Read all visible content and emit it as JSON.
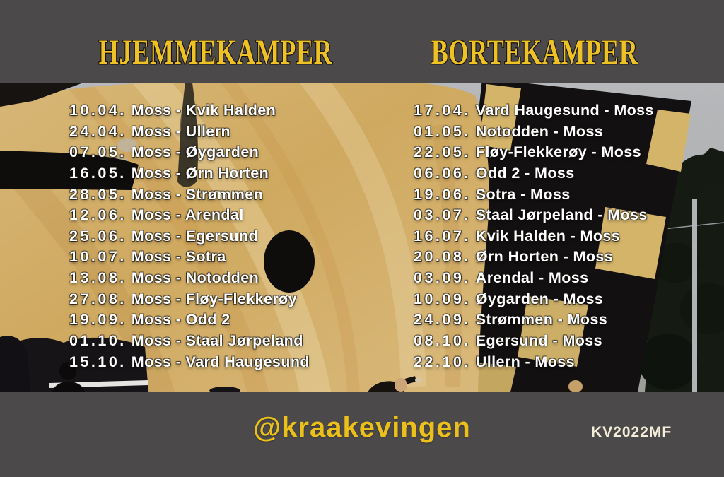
{
  "titles": {
    "home": "HJEMMEKAMPER",
    "away": "BORTEKAMPER"
  },
  "home_matches": [
    {
      "date": "10.04.",
      "fixture": "Moss - Kvik Halden"
    },
    {
      "date": "24.04.",
      "fixture": "Moss - Ullern"
    },
    {
      "date": "07.05.",
      "fixture": "Moss - Øygarden"
    },
    {
      "date": "16.05.",
      "fixture": "Moss - Ørn Horten"
    },
    {
      "date": "28.05.",
      "fixture": "Moss - Strømmen"
    },
    {
      "date": "12.06.",
      "fixture": "Moss - Arendal"
    },
    {
      "date": "25.06.",
      "fixture": "Moss - Egersund"
    },
    {
      "date": "10.07.",
      "fixture": "Moss - Sotra"
    },
    {
      "date": "13.08.",
      "fixture": "Moss - Notodden"
    },
    {
      "date": "27.08.",
      "fixture": "Moss - Fløy-Flekkerøy"
    },
    {
      "date": "19.09.",
      "fixture": "Moss - Odd 2"
    },
    {
      "date": "01.10.",
      "fixture": "Moss - Staal Jørpeland"
    },
    {
      "date": "15.10.",
      "fixture": "Moss - Vard Haugesund"
    }
  ],
  "away_matches": [
    {
      "date": "17.04.",
      "fixture": "Vard Haugesund - Moss"
    },
    {
      "date": "01.05.",
      "fixture": "Notodden - Moss"
    },
    {
      "date": "22.05.",
      "fixture": "Fløy-Flekkerøy - Moss"
    },
    {
      "date": "06.06.",
      "fixture": "Odd 2 - Moss"
    },
    {
      "date": "19.06.",
      "fixture": "Sotra - Moss"
    },
    {
      "date": "03.07.",
      "fixture": "Staal Jørpeland - Moss"
    },
    {
      "date": "16.07.",
      "fixture": "Kvik Halden - Moss"
    },
    {
      "date": "20.08.",
      "fixture": "Ørn Horten - Moss"
    },
    {
      "date": "03.09.",
      "fixture": "Arendal - Moss"
    },
    {
      "date": "10.09.",
      "fixture": "Øygarden - Moss"
    },
    {
      "date": "24.09.",
      "fixture": "Strømmen - Moss"
    },
    {
      "date": "08.10.",
      "fixture": "Egersund - Moss"
    },
    {
      "date": "22.10.",
      "fixture": "Ullern - Moss"
    }
  ],
  "footer": {
    "handle": "@kraakevingen",
    "code": "KV2022MF"
  },
  "colors": {
    "frame_gray": "#4c494a",
    "title_yellow": "#eec124",
    "title_outline": "#161310",
    "list_text": "#ffffff",
    "handle_yellow": "#ecc01a",
    "code_cream": "#f3edd9",
    "flag_tan": "#cfa960",
    "sky_gray": "#b0b2b5"
  }
}
